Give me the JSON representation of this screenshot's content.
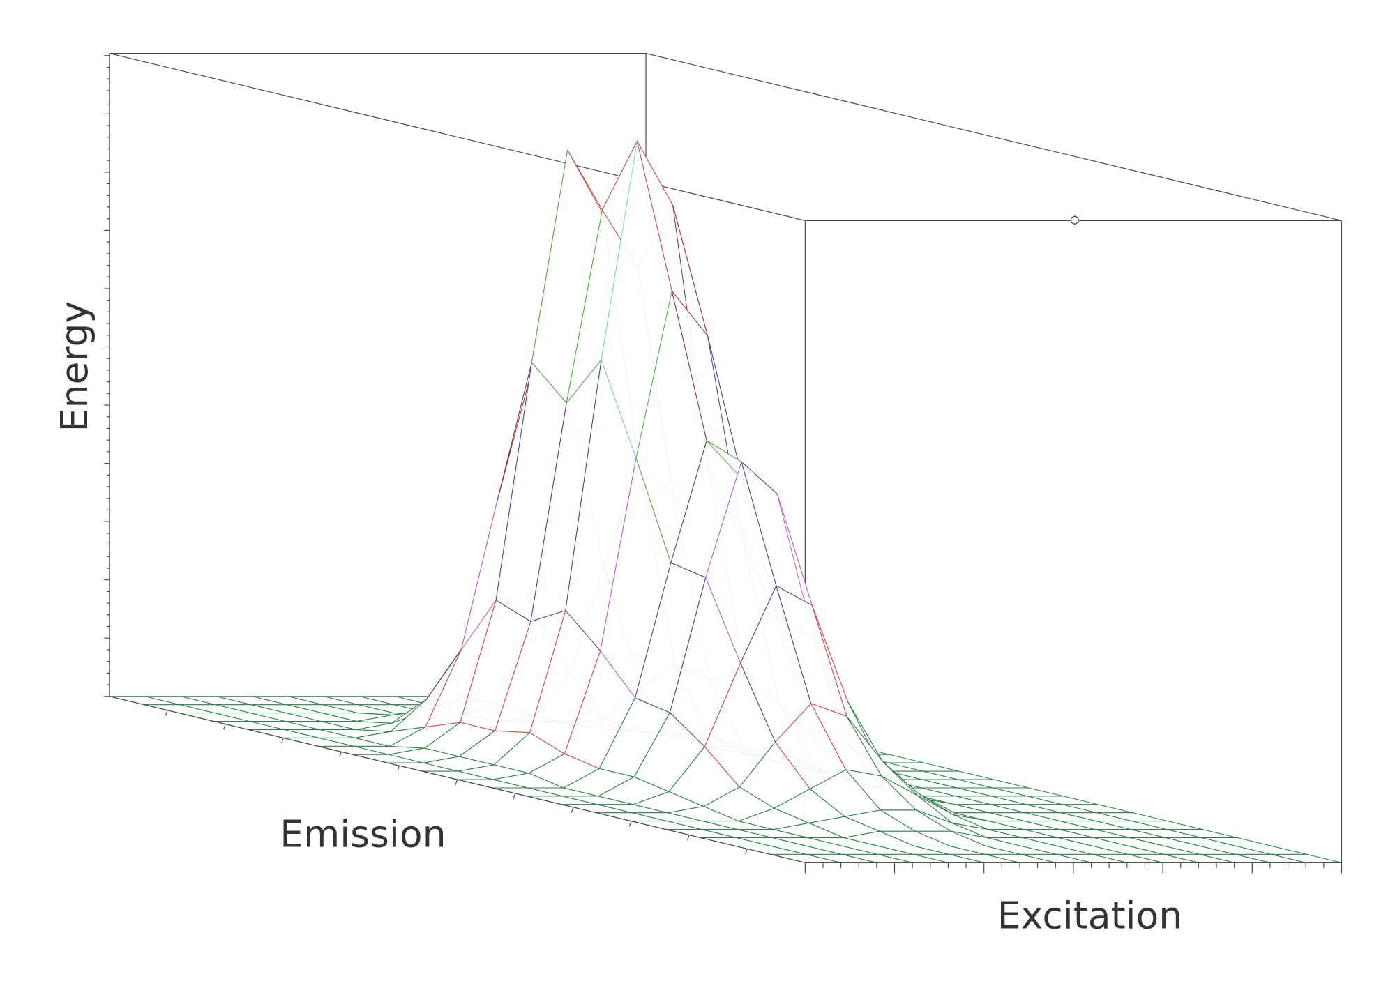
{
  "chart_data": {
    "type": "surface",
    "xlabel": "Excitation",
    "ylabel": "Emission",
    "zlabel": "Energy",
    "zlim": [
      0,
      100
    ],
    "colors": [
      "#2e7d46",
      "#d04848",
      "#3b4a8a",
      "#c065c0",
      "#3b4a8a",
      "#5aa84a",
      "#8b2f3a",
      "#7fd0e0",
      "#5aa84a",
      "#d04848",
      "#3b4a8a"
    ],
    "z": [
      [
        0,
        0,
        0,
        0,
        0,
        0,
        0,
        0,
        0,
        0,
        0,
        0,
        0,
        0,
        0,
        0,
        0,
        0,
        0,
        0,
        0
      ],
      [
        0,
        0,
        0,
        0,
        0,
        0,
        0,
        0,
        0,
        0,
        0,
        0,
        0,
        0,
        0,
        0,
        0,
        0,
        0,
        0,
        0
      ],
      [
        0,
        0,
        0,
        0,
        0,
        0,
        0,
        1,
        1,
        1,
        1,
        0,
        0,
        0,
        0,
        0,
        0,
        0,
        0,
        0,
        0
      ],
      [
        0,
        0,
        0,
        0,
        0,
        1,
        3,
        5,
        5,
        6,
        4,
        3,
        3,
        2,
        1,
        0,
        0,
        0,
        0,
        0,
        0
      ],
      [
        0,
        0,
        0,
        0,
        1,
        6,
        15,
        24,
        22,
        25,
        20,
        14,
        13,
        9,
        4,
        2,
        1,
        0,
        0,
        0,
        0
      ],
      [
        0,
        0,
        0,
        1,
        3,
        14,
        38,
        61,
        56,
        64,
        50,
        35,
        34,
        22,
        11,
        5,
        2,
        1,
        0,
        0,
        0
      ],
      [
        0,
        0,
        0,
        1,
        5,
        22,
        59,
        94,
        86,
        98,
        76,
        54,
        52,
        34,
        17,
        8,
        3,
        1,
        0,
        0,
        0
      ],
      [
        0,
        0,
        0,
        1,
        4,
        19,
        53,
        84,
        77,
        88,
        69,
        48,
        47,
        31,
        15,
        7,
        3,
        1,
        0,
        0,
        0
      ],
      [
        0,
        0,
        0,
        0,
        2,
        10,
        28,
        45,
        41,
        47,
        37,
        26,
        25,
        16,
        8,
        4,
        1,
        0,
        0,
        0,
        0
      ],
      [
        0,
        0,
        0,
        0,
        1,
        3,
        9,
        14,
        13,
        15,
        12,
        8,
        8,
        5,
        3,
        1,
        0,
        0,
        0,
        0,
        0
      ],
      [
        0,
        0,
        0,
        0,
        0,
        1,
        2,
        3,
        2,
        3,
        2,
        1,
        1,
        1,
        0,
        0,
        0,
        0,
        0,
        0,
        0
      ],
      [
        0,
        0,
        0,
        0,
        0,
        0,
        0,
        0,
        0,
        0,
        0,
        0,
        0,
        0,
        0,
        0,
        0,
        0,
        0,
        0,
        0
      ],
      [
        0,
        0,
        0,
        0,
        0,
        0,
        0,
        0,
        0,
        0,
        0,
        0,
        0,
        0,
        0,
        0,
        0,
        0,
        0,
        0,
        0
      ],
      [
        0,
        0,
        0,
        0,
        0,
        0,
        0,
        0,
        0,
        0,
        0,
        0,
        0,
        0,
        0,
        0,
        0,
        0,
        0,
        0,
        0
      ],
      [
        0,
        0,
        0,
        0,
        0,
        0,
        0,
        0,
        0,
        0,
        0,
        0,
        0,
        0,
        0,
        0,
        0,
        0,
        0,
        0,
        0
      ],
      [
        0,
        0,
        0,
        0,
        0,
        0,
        0,
        0,
        0,
        0,
        0,
        0,
        0,
        0,
        0,
        0,
        0,
        0,
        0,
        0,
        0
      ]
    ]
  }
}
